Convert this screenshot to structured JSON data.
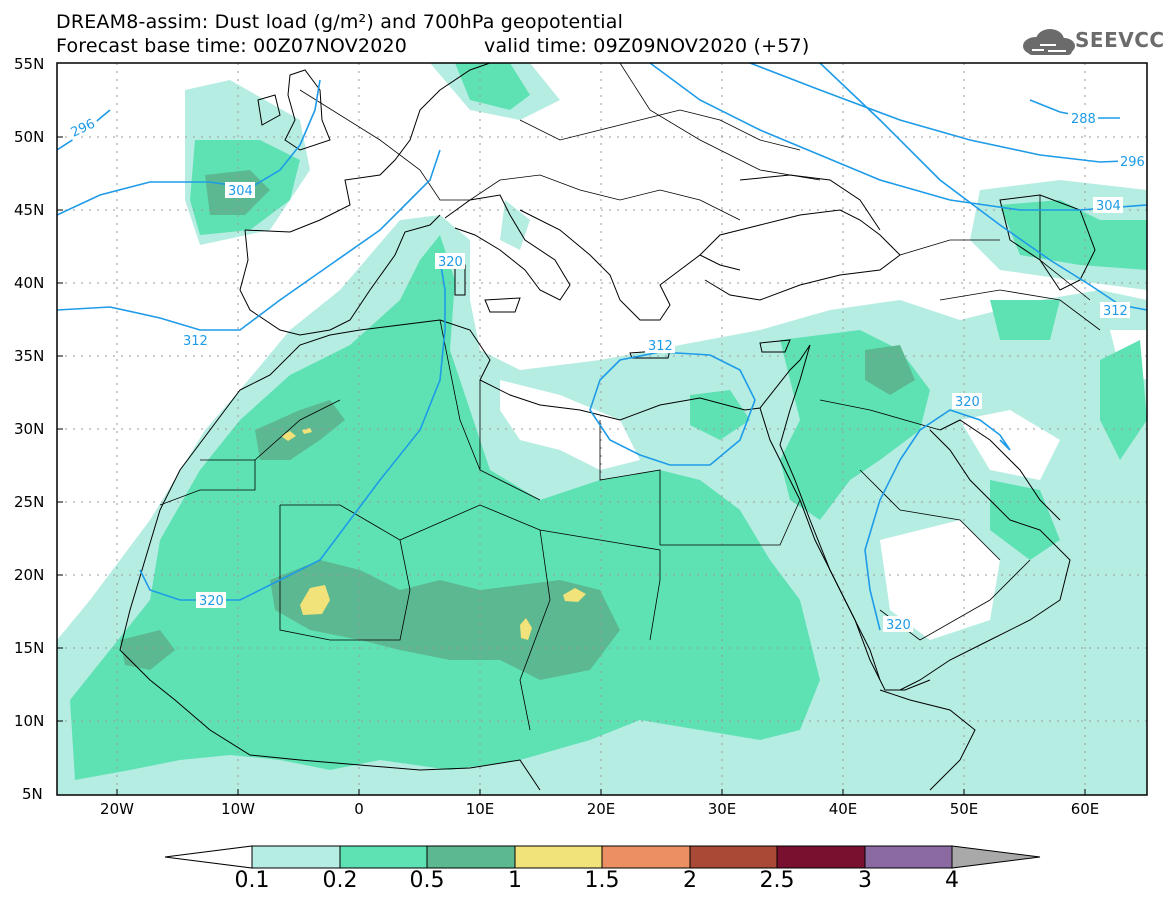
{
  "header": {
    "title_line1": "DREAM8-assim: Dust load (g/m²) and 700hPa geopotential",
    "title_line2_left": "Forecast base time: 00Z07NOV2020",
    "title_line2_right": "valid time: 09Z09NOV2020 (+57)"
  },
  "logo": {
    "icon": "cloud-icon",
    "text": "SEEVCCC"
  },
  "axes": {
    "lat_labels": [
      "55N",
      "50N",
      "45N",
      "40N",
      "35N",
      "30N",
      "25N",
      "20N",
      "15N",
      "10N",
      "5N"
    ],
    "lon_labels": [
      "20W",
      "10W",
      "0",
      "10E",
      "20E",
      "30E",
      "40E",
      "50E",
      "60E"
    ]
  },
  "contours": {
    "labels": [
      "296",
      "304",
      "312",
      "320",
      "312",
      "320",
      "320",
      "288",
      "296",
      "304",
      "312",
      "320"
    ]
  },
  "colorbar": {
    "labels": [
      "0.1",
      "0.2",
      "0.5",
      "1",
      "1.5",
      "2",
      "2.5",
      "3",
      "4"
    ],
    "colors": [
      "#ffffff",
      "#b6ede2",
      "#5ee2b4",
      "#5cb890",
      "#f2e27a",
      "#ea9062",
      "#a84a36",
      "#7a1030",
      "#8a6aa0",
      "#a9a9a9"
    ]
  },
  "colors": {
    "coast": "#000000",
    "contour": "#1e9be8",
    "dust_low": "#b6ede2",
    "dust_mid": "#5ee2b4",
    "dust_high": "#5cb890",
    "dust_peak": "#f2e27a"
  }
}
